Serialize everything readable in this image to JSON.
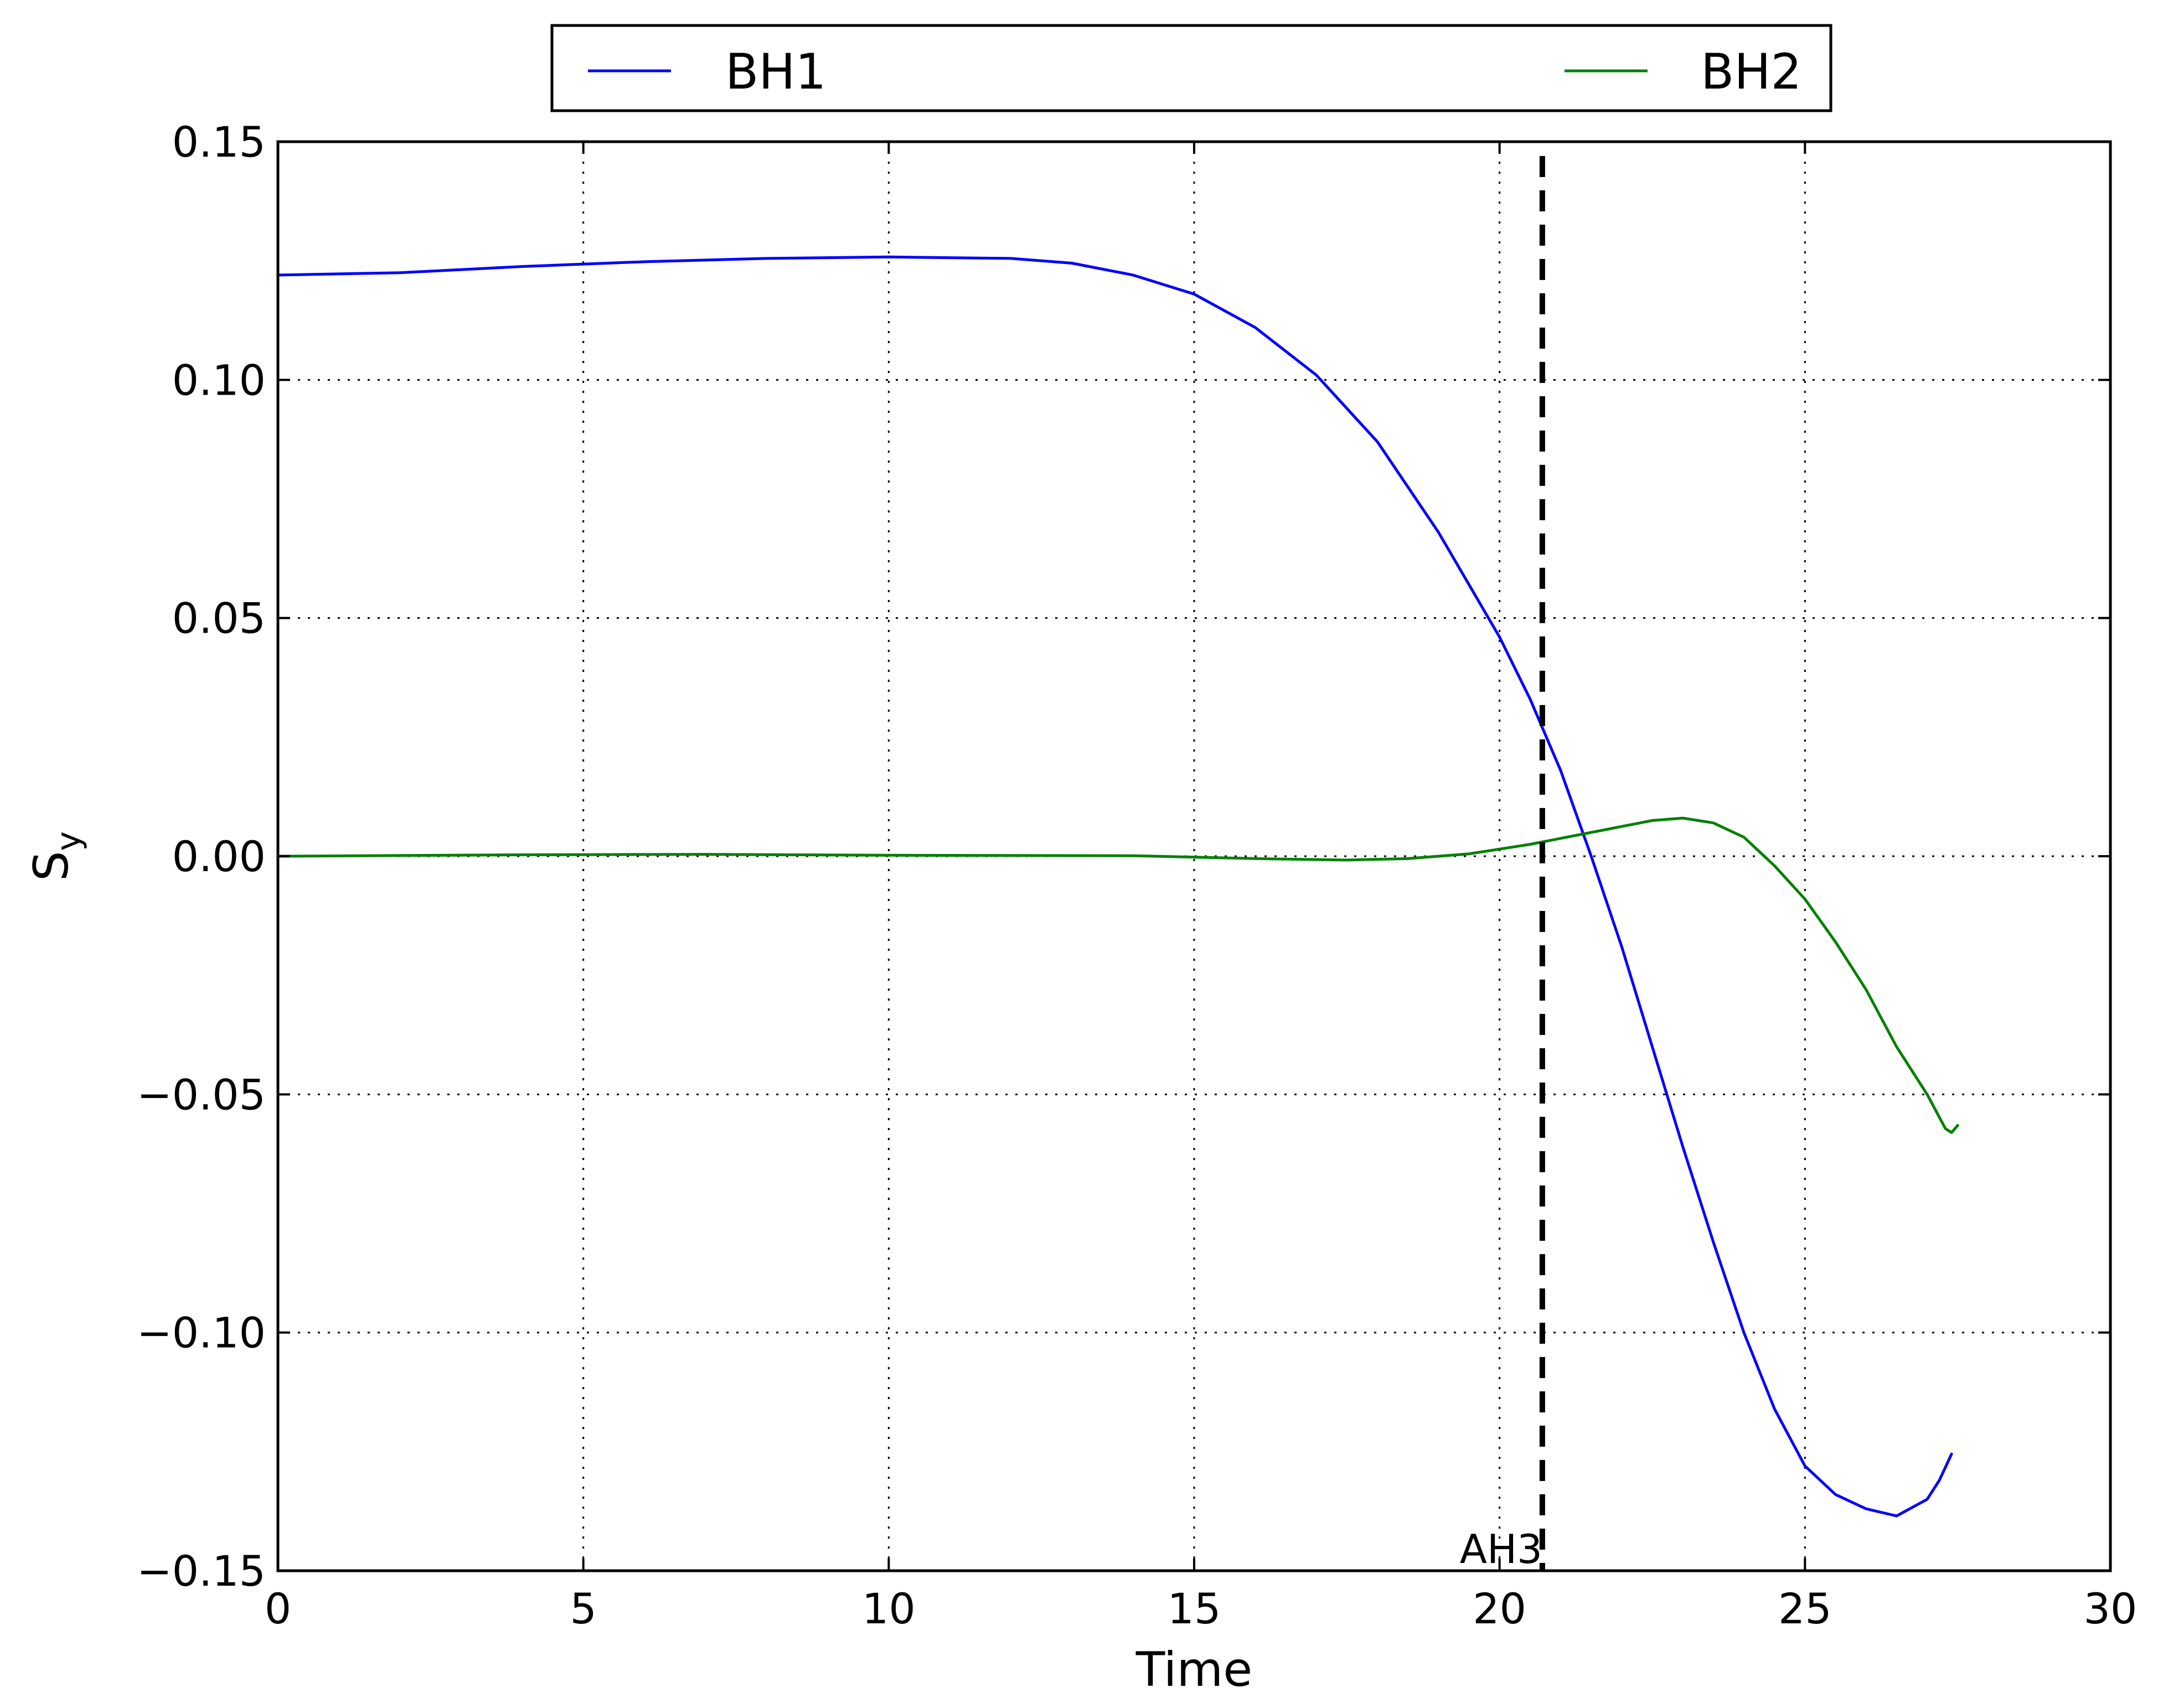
{
  "chart_data": {
    "type": "line",
    "xlabel": "Time",
    "ylabel": {
      "base": "S",
      "sub": "y"
    },
    "xlim": [
      0,
      30
    ],
    "ylim": [
      -0.15,
      0.15
    ],
    "x_ticks": [
      0,
      5,
      10,
      15,
      20,
      25,
      30
    ],
    "x_tick_labels": [
      "0",
      "5",
      "10",
      "15",
      "20",
      "25",
      "30"
    ],
    "y_ticks": [
      -0.15,
      -0.1,
      -0.05,
      0.0,
      0.05,
      0.1,
      0.15
    ],
    "y_tick_labels": [
      "−0.15",
      "−0.10",
      "−0.05",
      "0.00",
      "0.05",
      "0.10",
      "0.15"
    ],
    "grid": true,
    "legend_position": "top-outside",
    "series": [
      {
        "name": "BH1",
        "color": "#0000ff",
        "points": [
          [
            0,
            0.122
          ],
          [
            2,
            0.1225
          ],
          [
            4,
            0.1238
          ],
          [
            6,
            0.1248
          ],
          [
            8,
            0.1255
          ],
          [
            10,
            0.1258
          ],
          [
            12,
            0.1255
          ],
          [
            13,
            0.1245
          ],
          [
            14,
            0.122
          ],
          [
            15,
            0.118
          ],
          [
            16,
            0.111
          ],
          [
            17,
            0.101
          ],
          [
            18,
            0.087
          ],
          [
            19,
            0.068
          ],
          [
            20,
            0.046
          ],
          [
            20.5,
            0.033
          ],
          [
            21,
            0.018
          ],
          [
            21.5,
            0.0
          ],
          [
            22,
            -0.019
          ],
          [
            22.5,
            -0.04
          ],
          [
            23,
            -0.061
          ],
          [
            23.5,
            -0.081
          ],
          [
            24,
            -0.1
          ],
          [
            24.5,
            -0.116
          ],
          [
            25,
            -0.128
          ],
          [
            25.5,
            -0.134
          ],
          [
            26,
            -0.137
          ],
          [
            26.5,
            -0.1385
          ],
          [
            27,
            -0.135
          ],
          [
            27.2,
            -0.131
          ],
          [
            27.4,
            -0.1255
          ]
        ]
      },
      {
        "name": "BH2",
        "color": "#008000",
        "points": [
          [
            0,
            0.0
          ],
          [
            4,
            0.0003
          ],
          [
            7,
            0.0004
          ],
          [
            10,
            0.0002
          ],
          [
            14,
            0.0001
          ],
          [
            16,
            -0.0005
          ],
          [
            17.5,
            -0.0008
          ],
          [
            18.5,
            -0.0005
          ],
          [
            19.5,
            0.0005
          ],
          [
            20.5,
            0.0025
          ],
          [
            21.5,
            0.005
          ],
          [
            22.5,
            0.0075
          ],
          [
            23,
            0.008
          ],
          [
            23.5,
            0.007
          ],
          [
            24,
            0.004
          ],
          [
            24.5,
            -0.002
          ],
          [
            25,
            -0.009
          ],
          [
            25.5,
            -0.018
          ],
          [
            26,
            -0.028
          ],
          [
            26.5,
            -0.04
          ],
          [
            27,
            -0.05
          ],
          [
            27.3,
            -0.0572
          ],
          [
            27.4,
            -0.058
          ],
          [
            27.5,
            -0.0565
          ]
        ]
      }
    ],
    "vline": {
      "x": 20.7,
      "label": "AH3",
      "color": "#000000"
    }
  }
}
